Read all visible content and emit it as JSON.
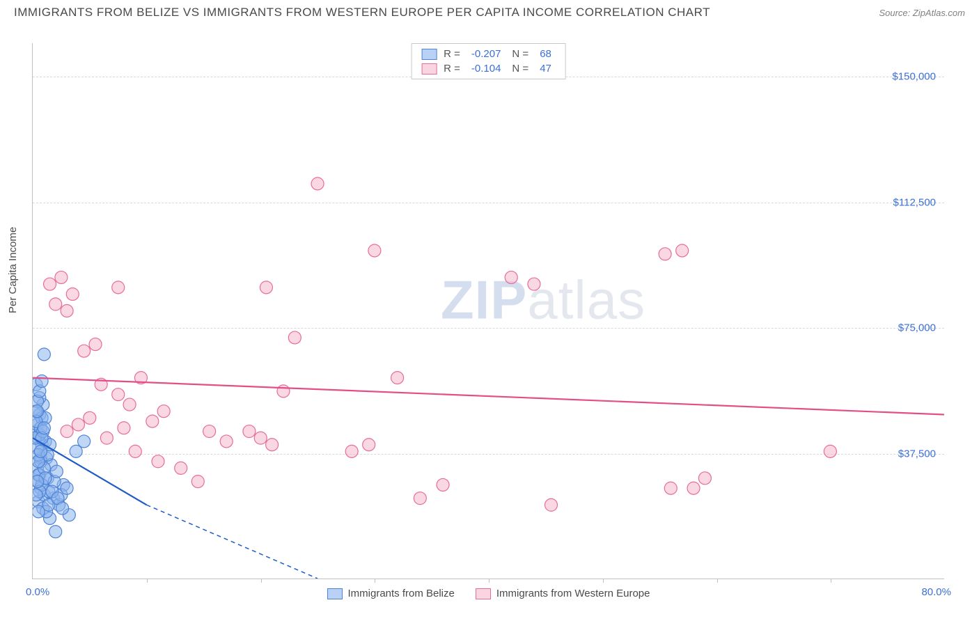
{
  "title": "IMMIGRANTS FROM BELIZE VS IMMIGRANTS FROM WESTERN EUROPE PER CAPITA INCOME CORRELATION CHART",
  "source_label": "Source: ",
  "source_name": "ZipAtlas.com",
  "watermark_zip": "ZIP",
  "watermark_atlas": "atlas",
  "chart": {
    "type": "scatter",
    "ylabel": "Per Capita Income",
    "xlim": [
      0,
      80
    ],
    "ylim": [
      0,
      160000
    ],
    "x_unit": "%",
    "xrange_left": "0.0%",
    "xrange_right": "80.0%",
    "yticks": [
      37500,
      75000,
      112500,
      150000
    ],
    "ytick_labels": [
      "$37,500",
      "$75,000",
      "$112,500",
      "$150,000"
    ],
    "xticks": [
      10,
      20,
      30,
      40,
      50,
      60,
      70
    ],
    "grid_color": "#d8d8d8",
    "background_color": "#ffffff",
    "axis_color": "#c0c0c0",
    "tick_label_color": "#3b6fd8",
    "label_fontsize": 15,
    "title_fontsize": 17,
    "marker_radius": 9,
    "marker_opacity": 0.55,
    "line_width": 2.2,
    "series": [
      {
        "name": "Immigrants from Belize",
        "color_fill": "#8db4ec",
        "color_stroke": "#4d82d6",
        "legend_swatch_fill": "#b8d1f5",
        "legend_swatch_border": "#4d82d6",
        "R": "-0.207",
        "N": "68",
        "trend": {
          "x1": 0,
          "y1": 42000,
          "x2": 10,
          "y2": 22000,
          "extrap_x": 25,
          "extrap_y": 0,
          "color": "#1d5bc4"
        },
        "points": [
          [
            0.3,
            44000
          ],
          [
            0.5,
            42000
          ],
          [
            0.6,
            49000
          ],
          [
            0.7,
            36000
          ],
          [
            0.8,
            40000
          ],
          [
            0.9,
            52000
          ],
          [
            0.4,
            33000
          ],
          [
            0.5,
            29000
          ],
          [
            0.6,
            31000
          ],
          [
            0.7,
            27000
          ],
          [
            1.0,
            67000
          ],
          [
            0.3,
            58000
          ],
          [
            0.4,
            46000
          ],
          [
            0.6,
            54000
          ],
          [
            0.8,
            48000
          ],
          [
            1.1,
            41000
          ],
          [
            1.2,
            36000
          ],
          [
            1.3,
            30000
          ],
          [
            1.5,
            18000
          ],
          [
            1.8,
            24000
          ],
          [
            2.0,
            14000
          ],
          [
            2.3,
            22000
          ],
          [
            2.7,
            28000
          ],
          [
            3.2,
            19000
          ],
          [
            0.5,
            23000
          ],
          [
            0.9,
            21000
          ],
          [
            1.0,
            25000
          ],
          [
            1.4,
            26000
          ],
          [
            1.6,
            34000
          ],
          [
            1.1,
            48000
          ],
          [
            0.4,
            39000
          ],
          [
            0.6,
            43000
          ],
          [
            0.7,
            35000
          ],
          [
            0.8,
            28000
          ],
          [
            0.5,
            31000
          ],
          [
            1.2,
            20000
          ],
          [
            1.9,
            29000
          ],
          [
            2.1,
            32000
          ],
          [
            2.5,
            25000
          ],
          [
            3.0,
            27000
          ],
          [
            3.8,
            38000
          ],
          [
            4.5,
            41000
          ],
          [
            0.3,
            50000
          ],
          [
            0.4,
            53000
          ],
          [
            0.6,
            56000
          ],
          [
            0.8,
            59000
          ],
          [
            0.5,
            37000
          ],
          [
            0.7,
            45000
          ],
          [
            1.0,
            33000
          ],
          [
            1.3,
            37000
          ],
          [
            1.5,
            40000
          ],
          [
            0.2,
            42000
          ],
          [
            0.3,
            47000
          ],
          [
            0.4,
            50000
          ],
          [
            0.9,
            44000
          ],
          [
            1.1,
            30000
          ],
          [
            1.4,
            22000
          ],
          [
            1.7,
            26000
          ],
          [
            2.2,
            24000
          ],
          [
            2.6,
            21000
          ],
          [
            0.5,
            35000
          ],
          [
            0.7,
            38000
          ],
          [
            0.8,
            42000
          ],
          [
            1.0,
            45000
          ],
          [
            0.6,
            26000
          ],
          [
            0.4,
            29000
          ],
          [
            0.3,
            25000
          ],
          [
            0.5,
            20000
          ]
        ]
      },
      {
        "name": "Immigrants from Western Europe",
        "color_fill": "#f5b8cc",
        "color_stroke": "#e76b9a",
        "legend_swatch_fill": "#fbd4e1",
        "legend_swatch_border": "#e76b9a",
        "R": "-0.104",
        "N": "47",
        "trend": {
          "x1": 0,
          "y1": 60000,
          "x2": 80,
          "y2": 49000,
          "color": "#e34e86"
        },
        "points": [
          [
            1.5,
            88000
          ],
          [
            2.0,
            82000
          ],
          [
            3.0,
            80000
          ],
          [
            7.5,
            87000
          ],
          [
            5.5,
            70000
          ],
          [
            4.5,
            68000
          ],
          [
            3.5,
            85000
          ],
          [
            6.0,
            58000
          ],
          [
            7.5,
            55000
          ],
          [
            8.5,
            52000
          ],
          [
            9.5,
            60000
          ],
          [
            10.5,
            47000
          ],
          [
            11.5,
            50000
          ],
          [
            13.0,
            33000
          ],
          [
            14.5,
            29000
          ],
          [
            15.5,
            44000
          ],
          [
            17.0,
            41000
          ],
          [
            20.5,
            87000
          ],
          [
            22.0,
            56000
          ],
          [
            23.0,
            72000
          ],
          [
            25.0,
            118000
          ],
          [
            28.0,
            38000
          ],
          [
            29.5,
            40000
          ],
          [
            30.0,
            98000
          ],
          [
            32.0,
            60000
          ],
          [
            34.0,
            24000
          ],
          [
            36.0,
            28000
          ],
          [
            42.0,
            90000
          ],
          [
            44.0,
            88000
          ],
          [
            45.5,
            22000
          ],
          [
            55.5,
            97000
          ],
          [
            56.0,
            27000
          ],
          [
            57.0,
            98000
          ],
          [
            70.0,
            38000
          ],
          [
            3.0,
            44000
          ],
          [
            4.0,
            46000
          ],
          [
            5.0,
            48000
          ],
          [
            6.5,
            42000
          ],
          [
            8.0,
            45000
          ],
          [
            9.0,
            38000
          ],
          [
            11.0,
            35000
          ],
          [
            19.0,
            44000
          ],
          [
            20.0,
            42000
          ],
          [
            21.0,
            40000
          ],
          [
            58.0,
            27000
          ],
          [
            59.0,
            30000
          ],
          [
            2.5,
            90000
          ]
        ]
      }
    ]
  },
  "legend_top": {
    "r_label": "R =",
    "n_label": "N ="
  }
}
